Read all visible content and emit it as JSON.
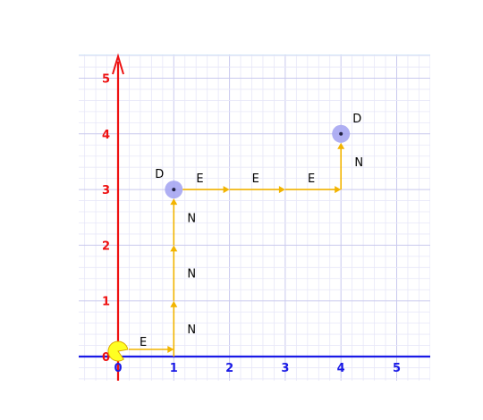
{
  "grid": {
    "x_range": [
      -0.7,
      5.6
    ],
    "y_range": [
      -0.45,
      5.6
    ],
    "major_step": 1,
    "minor_step": 0.2
  },
  "colors": {
    "background": "#ffffff",
    "grid_minor": "#e7e7f8",
    "grid_major": "#c9c9ee",
    "top_border": "#bcd8f2",
    "x_axis": "#1a1ae6",
    "y_axis": "#ee1111",
    "path": "#f2b400",
    "highlight": "#a6a6f2",
    "agent": "#ffff22",
    "agent_outline": "#ddaa00"
  },
  "axes": {
    "x_ticks": [
      "0",
      "1",
      "2",
      "3",
      "4",
      "5"
    ],
    "y_ticks": [
      "0",
      "1",
      "2",
      "3",
      "4",
      "5"
    ]
  },
  "agent": {
    "x": 0,
    "y": 0,
    "icon": "pacman-icon"
  },
  "moves": [
    {
      "label": "E",
      "from": [
        0,
        0
      ],
      "to": [
        1,
        0
      ]
    },
    {
      "label": "N",
      "from": [
        1,
        0
      ],
      "to": [
        1,
        1
      ]
    },
    {
      "label": "N",
      "from": [
        1,
        1
      ],
      "to": [
        1,
        2
      ]
    },
    {
      "label": "N",
      "from": [
        1,
        2
      ],
      "to": [
        1,
        3
      ]
    },
    {
      "label": "E",
      "from": [
        1,
        3
      ],
      "to": [
        2,
        3
      ]
    },
    {
      "label": "E",
      "from": [
        2,
        3
      ],
      "to": [
        3,
        3
      ]
    },
    {
      "label": "E",
      "from": [
        3,
        3
      ],
      "to": [
        4,
        3
      ]
    },
    {
      "label": "N",
      "from": [
        4,
        3
      ],
      "to": [
        4,
        4
      ]
    }
  ],
  "drops": [
    {
      "label": "D",
      "x": 1,
      "y": 3
    },
    {
      "label": "D",
      "x": 4,
      "y": 4
    }
  ]
}
